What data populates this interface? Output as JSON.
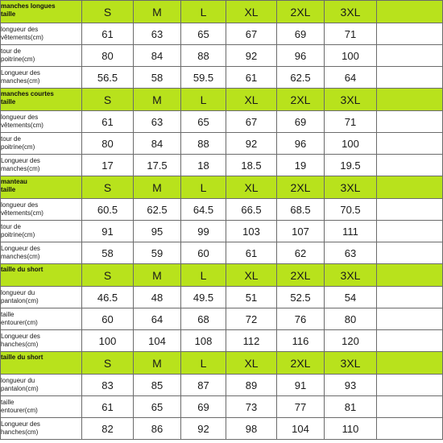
{
  "sections": [
    {
      "title": "manches longues\ntaille",
      "sizes": [
        "S",
        "M",
        "L",
        "XL",
        "2XL",
        "3XL"
      ],
      "rows": [
        {
          "label": "longueur des\nvêtements(cm)",
          "values": [
            "61",
            "63",
            "65",
            "67",
            "69",
            "71"
          ]
        },
        {
          "label": "tour de\npoitrine(cm)",
          "values": [
            "80",
            "84",
            "88",
            "92",
            "96",
            "100"
          ]
        },
        {
          "label": "Longueur des\nmanches(cm)",
          "values": [
            "56.5",
            "58",
            "59.5",
            "61",
            "62.5",
            "64"
          ]
        }
      ]
    },
    {
      "title": "manches courtes\ntaille",
      "sizes": [
        "S",
        "M",
        "L",
        "XL",
        "2XL",
        "3XL"
      ],
      "rows": [
        {
          "label": "longueur des\nvêtements(cm)",
          "values": [
            "61",
            "63",
            "65",
            "67",
            "69",
            "71"
          ]
        },
        {
          "label": "tour de\npoitrine(cm)",
          "values": [
            "80",
            "84",
            "88",
            "92",
            "96",
            "100"
          ]
        },
        {
          "label": "Longueur des\nmanches(cm)",
          "values": [
            "17",
            "17.5",
            "18",
            "18.5",
            "19",
            "19.5"
          ]
        }
      ]
    },
    {
      "title": "manteau\ntaille",
      "sizes": [
        "S",
        "M",
        "L",
        "XL",
        "2XL",
        "3XL"
      ],
      "rows": [
        {
          "label": "longueur des\nvêtements(cm)",
          "values": [
            "60.5",
            "62.5",
            "64.5",
            "66.5",
            "68.5",
            "70.5"
          ]
        },
        {
          "label": "tour de\npoitrine(cm)",
          "values": [
            "91",
            "95",
            "99",
            "103",
            "107",
            "111"
          ]
        },
        {
          "label": "Longueur des\nmanches(cm)",
          "values": [
            "58",
            "59",
            "60",
            "61",
            "62",
            "63"
          ]
        }
      ]
    },
    {
      "title": "taille du short",
      "sizes": [
        "S",
        "M",
        "L",
        "XL",
        "2XL",
        "3XL"
      ],
      "rows": [
        {
          "label": "longueur du\npantalon(cm)",
          "values": [
            "46.5",
            "48",
            "49.5",
            "51",
            "52.5",
            "54"
          ]
        },
        {
          "label": "taille\nentourer(cm)",
          "values": [
            "60",
            "64",
            "68",
            "72",
            "76",
            "80"
          ]
        },
        {
          "label": "Longueur des\nhanches(cm)",
          "values": [
            "100",
            "104",
            "108",
            "112",
            "116",
            "120"
          ]
        }
      ]
    },
    {
      "title": "taille du short",
      "sizes": [
        "S",
        "M",
        "L",
        "XL",
        "2XL",
        "3XL"
      ],
      "rows": [
        {
          "label": "longueur du\npantalon(cm)",
          "values": [
            "83",
            "85",
            "87",
            "89",
            "91",
            "93"
          ]
        },
        {
          "label": "taille\nentourer(cm)",
          "values": [
            "61",
            "65",
            "69",
            "73",
            "77",
            "81"
          ]
        },
        {
          "label": "Longueur des\nhanches(cm)",
          "values": [
            "82",
            "86",
            "92",
            "98",
            "104",
            "110"
          ]
        }
      ]
    }
  ],
  "colors": {
    "header_background": "#b8e21c",
    "border": "#6b6b6b",
    "text": "#1a1a1a"
  }
}
